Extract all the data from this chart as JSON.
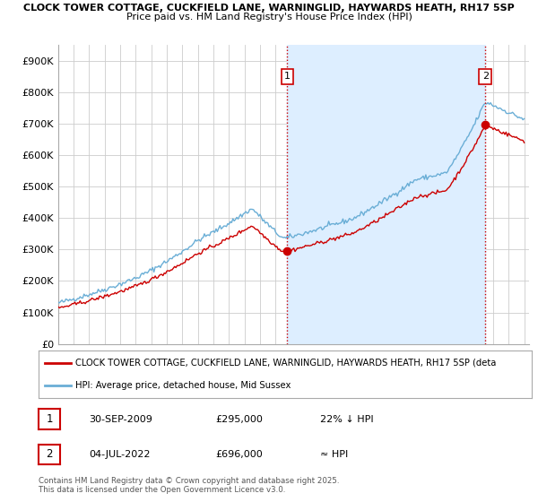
{
  "title_line1": "CLOCK TOWER COTTAGE, CUCKFIELD LANE, WARNINGLID, HAYWARDS HEATH, RH17 5SP",
  "title_line2": "Price paid vs. HM Land Registry's House Price Index (HPI)",
  "ylim": [
    0,
    950000
  ],
  "yticks": [
    0,
    100000,
    200000,
    300000,
    400000,
    500000,
    600000,
    700000,
    800000,
    900000
  ],
  "ytick_labels": [
    "£0",
    "£100K",
    "£200K",
    "£300K",
    "£400K",
    "£500K",
    "£600K",
    "£700K",
    "£800K",
    "£900K"
  ],
  "sale1_year": 2009.75,
  "sale1_price": 295000,
  "sale2_year": 2022.5,
  "sale2_price": 696000,
  "hpi_color": "#6aaed6",
  "price_color": "#cc0000",
  "shade_color": "#ddeeff",
  "annotation_box_color": "#cc0000",
  "grid_color": "#cccccc",
  "background_color": "#ffffff",
  "legend_property_text": "CLOCK TOWER COTTAGE, CUCKFIELD LANE, WARNINGLID, HAYWARDS HEATH, RH17 5SP (deta",
  "legend_hpi_text": "HPI: Average price, detached house, Mid Sussex",
  "copyright_text": "Contains HM Land Registry data © Crown copyright and database right 2025.\nThis data is licensed under the Open Government Licence v3.0."
}
